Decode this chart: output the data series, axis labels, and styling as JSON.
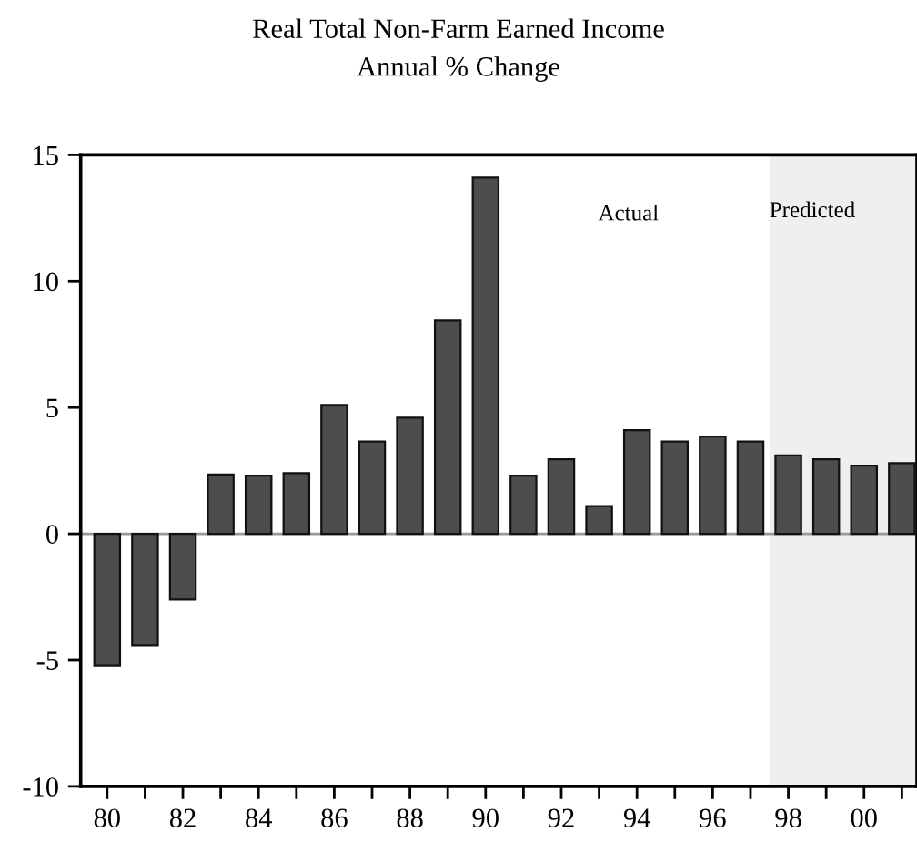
{
  "chart_data": {
    "type": "bar",
    "title": "Real Total Non-Farm Earned Income",
    "subtitle": "Annual % Change",
    "x": [
      1980,
      1981,
      1982,
      1983,
      1984,
      1985,
      1986,
      1987,
      1988,
      1989,
      1990,
      1991,
      1992,
      1993,
      1994,
      1995,
      1996,
      1997,
      1998,
      1999,
      2000,
      2001
    ],
    "series": [
      {
        "color": "#4d4d4d",
        "values": [
          -5.2,
          -4.4,
          -2.6,
          2.35,
          2.3,
          2.4,
          5.1,
          3.65,
          4.6,
          8.45,
          14.1,
          2.3,
          2.95,
          1.1,
          4.1,
          3.65,
          3.85,
          3.65,
          3.1,
          2.95,
          2.7,
          2.8
        ]
      }
    ],
    "xlim": [
      1979.3,
      2001.4
    ],
    "xticks": [
      {
        "value": 1980,
        "label": "80"
      },
      {
        "value": 1981,
        "label": null
      },
      {
        "value": 1982,
        "label": "82"
      },
      {
        "value": 1983,
        "label": null
      },
      {
        "value": 1984,
        "label": "84"
      },
      {
        "value": 1985,
        "label": null
      },
      {
        "value": 1986,
        "label": "86"
      },
      {
        "value": 1987,
        "label": null
      },
      {
        "value": 1988,
        "label": "88"
      },
      {
        "value": 1989,
        "label": null
      },
      {
        "value": 1990,
        "label": "90"
      },
      {
        "value": 1991,
        "label": null
      },
      {
        "value": 1992,
        "label": "92"
      },
      {
        "value": 1993,
        "label": null
      },
      {
        "value": 1994,
        "label": "94"
      },
      {
        "value": 1995,
        "label": null
      },
      {
        "value": 1996,
        "label": "96"
      },
      {
        "value": 1997,
        "label": null
      },
      {
        "value": 1998,
        "label": "98"
      },
      {
        "value": 1999,
        "label": null
      },
      {
        "value": 2000,
        "label": "00"
      },
      {
        "value": 2001,
        "label": null
      }
    ],
    "ylim": [
      -10,
      15
    ],
    "yticks": [
      -10,
      -5,
      0,
      5,
      10,
      15
    ],
    "ref_lines": [
      {
        "axis": "y",
        "value": 0,
        "color": "#999999"
      }
    ],
    "bands": [
      {
        "axis": "x",
        "from": 1997.5,
        "to": 2001.4,
        "color": "#efefef",
        "label": "Predicted"
      }
    ],
    "annotations": [
      "Actual"
    ],
    "grid": false,
    "legend": false
  }
}
